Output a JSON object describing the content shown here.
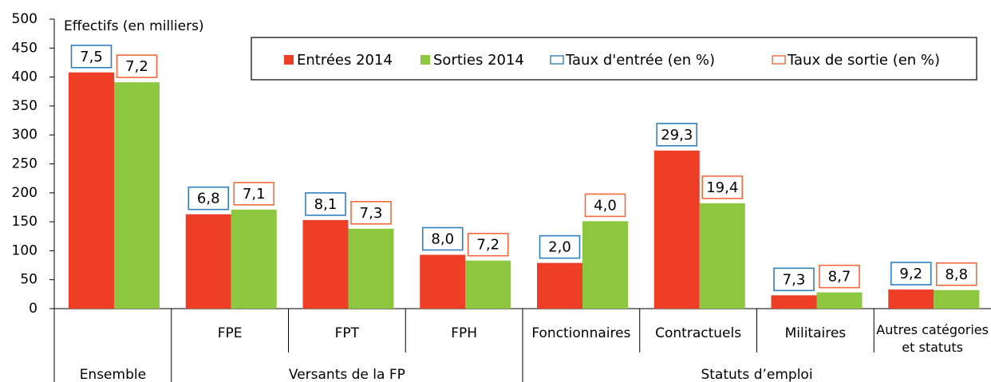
{
  "chart_data": {
    "type": "bar",
    "y_label": "Effectifs (en milliers)",
    "categories": [
      null,
      "FPE",
      "FPT",
      "FPH",
      "Fonctionnaires",
      "Contractuels",
      "Militaires",
      "Autres catégories et statuts"
    ],
    "groups": [
      {
        "label": "Ensemble",
        "count": 1
      },
      {
        "label": "Versants de la FP",
        "count": 3
      },
      {
        "label": "Statuts d’emploi",
        "count": 4
      }
    ],
    "series": [
      {
        "name": "Entrées 2014",
        "color": "#ee3e25",
        "values": [
          408,
          163,
          153,
          93,
          79,
          273,
          23,
          33
        ]
      },
      {
        "name": "Sorties 2014",
        "color": "#8dc63f",
        "values": [
          391,
          171,
          138,
          83,
          151,
          182,
          28,
          32
        ]
      }
    ],
    "rates": [
      {
        "name": "Taux d'entrée (en %)",
        "color": "#2f7fc1",
        "values": [
          7.5,
          6.8,
          8.1,
          8.0,
          2.0,
          29.3,
          7.3,
          9.2
        ],
        "value_labels": [
          "7,5",
          "6,8",
          "8,1",
          "8,0",
          "2,0",
          "29,3",
          "7,3",
          "9,2"
        ]
      },
      {
        "name": "Taux de sortie (en %)",
        "color": "#f26a3d",
        "values": [
          7.2,
          7.1,
          7.3,
          7.2,
          4.0,
          19.4,
          8.7,
          8.8
        ],
        "value_labels": [
          "7,2",
          "7,1",
          "7,3",
          "7,2",
          "4,0",
          "19,4",
          "8,7",
          "8,8"
        ]
      }
    ],
    "ylim": [
      0,
      500
    ],
    "yticks": [
      0,
      50,
      100,
      150,
      200,
      250,
      300,
      350,
      400,
      450,
      500
    ]
  }
}
